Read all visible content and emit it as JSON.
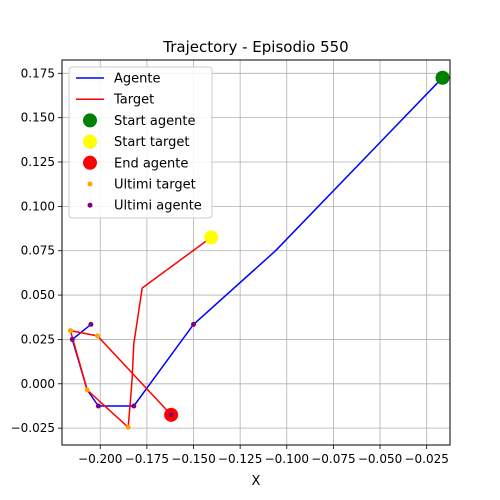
{
  "chart_data": {
    "type": "line",
    "title": "Trajectory - Episodio 550",
    "xlabel": "X",
    "ylabel": "",
    "xlim": [
      -0.2205,
      -0.0125
    ],
    "ylim": [
      -0.0345,
      0.1825
    ],
    "xticks": [
      -0.2,
      -0.175,
      -0.15,
      -0.125,
      -0.1,
      -0.075,
      -0.05,
      -0.025
    ],
    "xtick_labels": [
      "−0.200",
      "−0.175",
      "−0.150",
      "−0.125",
      "−0.100",
      "−0.075",
      "−0.050",
      "−0.025"
    ],
    "yticks": [
      -0.025,
      0.0,
      0.025,
      0.05,
      0.075,
      0.1,
      0.125,
      0.15,
      0.175
    ],
    "ytick_labels": [
      "−0.025",
      "0.000",
      "0.025",
      "0.050",
      "0.075",
      "0.100",
      "0.125",
      "0.150",
      "0.175"
    ],
    "grid": true,
    "legend_position": "top-left",
    "series": [
      {
        "name": "Agente",
        "kind": "line",
        "color": "#0000ff",
        "x": [
          -0.0165,
          -0.106,
          -0.15,
          -0.182,
          -0.201,
          -0.207,
          -0.215,
          -0.205
        ],
        "y": [
          0.1725,
          0.075,
          0.0335,
          -0.0125,
          -0.0125,
          -0.0035,
          0.025,
          0.0335
        ]
      },
      {
        "name": "Target",
        "kind": "line",
        "color": "#ff0000",
        "x": [
          -0.1405,
          -0.1775,
          -0.182,
          -0.183,
          -0.185,
          -0.207,
          -0.216,
          -0.2015,
          -0.162
        ],
        "y": [
          0.0825,
          0.054,
          0.0225,
          0.0015,
          -0.0245,
          -0.0035,
          0.03,
          0.027,
          -0.0175
        ]
      },
      {
        "name": "Start agente",
        "kind": "scatter",
        "color": "#008000",
        "size": 7,
        "x": [
          -0.0165
        ],
        "y": [
          0.1725
        ]
      },
      {
        "name": "Start target",
        "kind": "scatter",
        "color": "#ffff00",
        "size": 7,
        "x": [
          -0.1405
        ],
        "y": [
          0.0825
        ]
      },
      {
        "name": "End agente",
        "kind": "scatter",
        "color": "#ff0000",
        "size": 7,
        "x": [
          -0.162
        ],
        "y": [
          -0.0175
        ]
      },
      {
        "name": "Ultimi target",
        "kind": "scatter",
        "color": "#ffa500",
        "size": 2.5,
        "x": [
          -0.216,
          -0.2015,
          -0.185,
          -0.207,
          -0.162
        ],
        "y": [
          0.03,
          0.027,
          -0.0245,
          -0.0035,
          -0.0175
        ]
      },
      {
        "name": "Ultimi agente",
        "kind": "scatter",
        "color": "#800080",
        "size": 2.5,
        "x": [
          -0.205,
          -0.215,
          -0.201,
          -0.182,
          -0.15,
          -0.162
        ],
        "y": [
          0.0335,
          0.025,
          -0.0125,
          -0.0125,
          0.0335,
          -0.0175
        ]
      }
    ]
  }
}
